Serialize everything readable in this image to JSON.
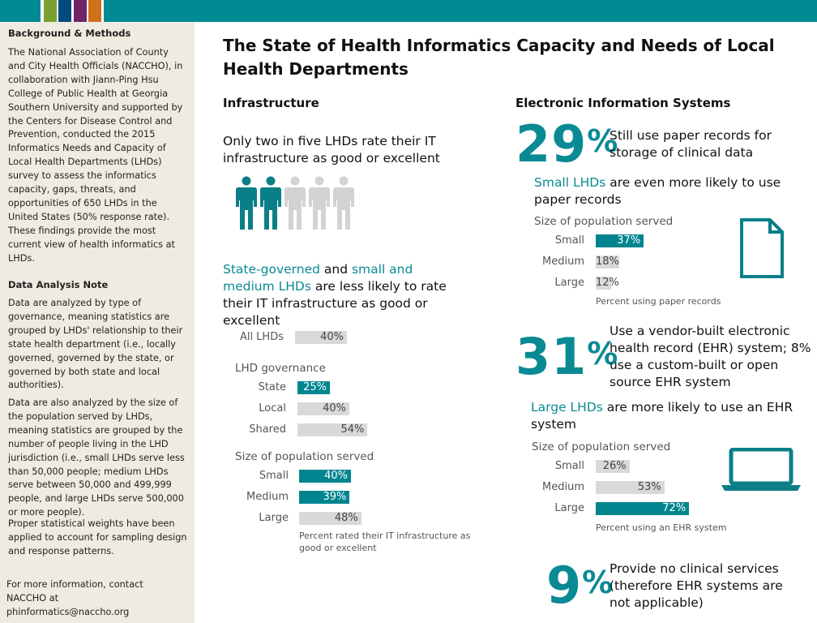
{
  "header": {
    "colors": [
      "#7aa02f",
      "#004a80",
      "#6e2466",
      "#d2701c"
    ],
    "teal": "#008a94"
  },
  "sidebar": {
    "bg_title": "Background & Methods",
    "bg_text": "The National Association of County and City Health Officials (NACCHO), in collaboration with Jiann-Ping Hsu College of Public Health at Georgia Southern University and supported by the Centers for Disease Control and Prevention, conducted the 2015 Informatics Needs and Capacity of Local Health Departments (LHDs) survey to assess the informatics capacity, gaps, threats, and opportunities of 650 LHDs in the United States (50% response rate). These findings provide the most current view of health informatics at LHDs.",
    "note_title": "Data Analysis Note",
    "note_p1": "Data are analyzed by type of governance, meaning statistics are grouped by LHDs' relationship to their state health department (i.e., locally governed, governed by the state, or governed by both state and local authorities).",
    "note_p2": "Data are also analyzed by the size of the population served by LHDs, meaning statistics are grouped by the number of people living in the LHD jurisdiction (i.e., small LHDs serve less than 50,000 people; medium LHDs serve between 50,000 and 499,999 people, and large LHDs serve 500,000 or more people).",
    "note_p3": "Proper statistical weights have been applied to account for sampling design and response patterns.",
    "contact": "For more information, contact NACCHO at phinformatics@naccho.org"
  },
  "title": "The State of Health Informatics Capacity and Needs of Local Health Departments",
  "infra": {
    "heading": "Infrastructure",
    "stat": "Only two in five LHDs rate their IT infrastructure as good or excellent",
    "people_highlighted": 2,
    "people_total": 5,
    "h1": "State-governed",
    "and": " and ",
    "h2": "small and medium LHDs",
    "rest": " are less likely to rate their IT infrastructure as good or excellent"
  },
  "eis": {
    "heading": "Electronic Information Systems",
    "s1_big": "29",
    "s1_text": "Still use paper records for storage of clinical data",
    "s1_sub_h": "Small LHDs",
    "s1_sub_rest": " are even more likely to use paper records",
    "s2_big": "31",
    "s2_text": "Use a vendor-built electronic health record (EHR) system; 8% use a custom-built or open source EHR system",
    "s2_sub_h": "Large LHDs",
    "s2_sub_rest": " are more likely to use an EHR system",
    "s3_big": "9",
    "s3_text": "Provide no clinical services (therefore EHR systems are not applicable)",
    "pct": "%"
  },
  "chart_data": [
    {
      "type": "bar",
      "orientation": "horizontal",
      "groups": [
        {
          "title": "",
          "categories": [
            "All LHDs"
          ],
          "values": [
            40
          ],
          "highlight": [
            false
          ]
        },
        {
          "title": "LHD governance",
          "categories": [
            "State",
            "Local",
            "Shared"
          ],
          "values": [
            25,
            40,
            54
          ],
          "highlight": [
            true,
            false,
            false
          ]
        },
        {
          "title": "Size of population served",
          "categories": [
            "Small",
            "Medium",
            "Large"
          ],
          "values": [
            40,
            39,
            48
          ],
          "highlight": [
            true,
            true,
            false
          ]
        }
      ],
      "note": "Percent rated their IT infrastructure as good or excellent",
      "unit": "%"
    },
    {
      "type": "bar",
      "orientation": "horizontal",
      "groups": [
        {
          "title": "Size of population served",
          "categories": [
            "Small",
            "Medium",
            "Large"
          ],
          "values": [
            37,
            18,
            12
          ],
          "highlight": [
            true,
            false,
            false
          ]
        }
      ],
      "note": "Percent using paper records",
      "unit": "%"
    },
    {
      "type": "bar",
      "orientation": "horizontal",
      "groups": [
        {
          "title": "Size of population served",
          "categories": [
            "Small",
            "Medium",
            "Large"
          ],
          "values": [
            26,
            53,
            72
          ],
          "highlight": [
            false,
            false,
            true
          ]
        }
      ],
      "note": "Percent using an EHR system",
      "unit": "%"
    }
  ],
  "colors": {
    "highlight": "#00858f",
    "gray": "#d9d9d9",
    "person_on": "#0a7f88",
    "person_off": "#d3d3d3"
  }
}
